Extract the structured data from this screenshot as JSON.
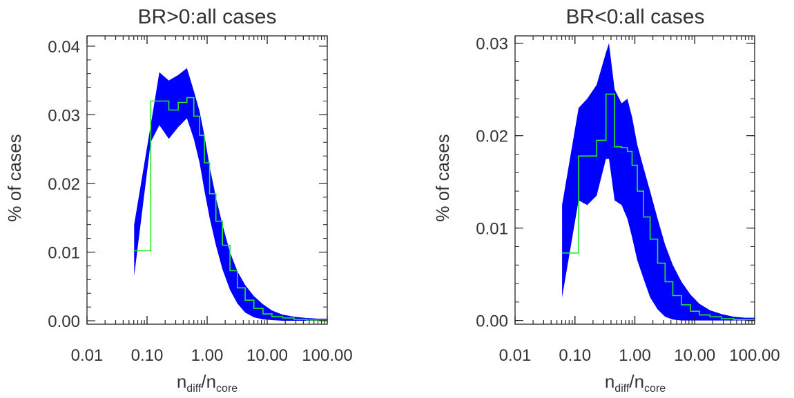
{
  "chart_data": [
    {
      "type": "area",
      "title": "BR>0:all cases",
      "xlabel_main": "n",
      "xlabel_sub1": "diff",
      "xlabel_sep": "/n",
      "xlabel_sub2": "core",
      "ylabel": "% of cases",
      "xscale": "log",
      "xlim": [
        0.01,
        100
      ],
      "ylim": [
        -0.0005,
        0.0415
      ],
      "xticks": [
        0.01,
        0.1,
        1,
        10,
        100
      ],
      "xtick_labels": [
        "0.01",
        "0.10",
        "1.00",
        "10.00",
        "100.00"
      ],
      "yticks": [
        0.0,
        0.01,
        0.02,
        0.03,
        0.04
      ],
      "ytick_labels": [
        "0.00",
        "0.01",
        "0.02",
        "0.03",
        "0.04"
      ],
      "grid": false,
      "colors": {
        "band": "#0000ff",
        "histogram": "#22ee22"
      },
      "series": [
        {
          "x": [
            0.061,
            0.115,
            0.16,
            0.23,
            0.33,
            0.46,
            0.6,
            0.75,
            0.9,
            1.1,
            1.4,
            1.8,
            2.4,
            3.2,
            4.3,
            6,
            8.5,
            12,
            18,
            28,
            45,
            70,
            100
          ],
          "upper": [
            0.014,
            0.0285,
            0.0362,
            0.035,
            0.0358,
            0.0368,
            0.0335,
            0.0305,
            0.027,
            0.0225,
            0.018,
            0.014,
            0.01,
            0.0072,
            0.0052,
            0.0036,
            0.0024,
            0.0015,
            0.0009,
            0.0006,
            0.0004,
            0.0003,
            0.0003
          ],
          "lower": [
            0.0065,
            0.026,
            0.0285,
            0.0265,
            0.0282,
            0.0295,
            0.0265,
            0.023,
            0.019,
            0.015,
            0.011,
            0.0075,
            0.0045,
            0.0025,
            0.0012,
            0.0005,
            0.0002,
            0.0001,
            0.0,
            0.0,
            0.0,
            0.0,
            0.0
          ]
        },
        {
          "edges": [
            0.061,
            0.115,
            0.16,
            0.23,
            0.33,
            0.46,
            0.6,
            0.75,
            0.9,
            1.1,
            1.4,
            1.8,
            2.4,
            3.2,
            4.3,
            6,
            8.5,
            12,
            18,
            28,
            45,
            70,
            100
          ],
          "values": [
            0.0102,
            0.032,
            0.032,
            0.0307,
            0.0318,
            0.0325,
            0.0298,
            0.027,
            0.023,
            0.0185,
            0.0145,
            0.011,
            0.0073,
            0.0048,
            0.003,
            0.0018,
            0.001,
            0.0006,
            0.0004,
            0.0002,
            0.0001,
            0.0001
          ]
        }
      ]
    },
    {
      "type": "area",
      "title": "BR<0:all cases",
      "xlabel_main": "n",
      "xlabel_sub1": "diff",
      "xlabel_sep": "/n",
      "xlabel_sub2": "core",
      "ylabel": "% of cases",
      "xscale": "log",
      "xlim": [
        0.01,
        100
      ],
      "ylim": [
        -0.0004,
        0.0308
      ],
      "xticks": [
        0.01,
        0.1,
        1,
        10,
        100
      ],
      "xtick_labels": [
        "0.01",
        "0.10",
        "1.00",
        "10.00",
        "100.00"
      ],
      "yticks": [
        0.0,
        0.01,
        0.02,
        0.03
      ],
      "ytick_labels": [
        "0.00",
        "0.01",
        "0.02",
        "0.03"
      ],
      "grid": false,
      "colors": {
        "band": "#0000ff",
        "histogram": "#22ee22"
      },
      "series": [
        {
          "x": [
            0.061,
            0.115,
            0.16,
            0.23,
            0.33,
            0.37,
            0.46,
            0.6,
            0.75,
            0.9,
            1.1,
            1.4,
            1.8,
            2.4,
            3.2,
            4.3,
            6,
            8.5,
            12,
            18,
            28,
            45,
            70,
            100
          ],
          "upper": [
            0.0125,
            0.023,
            0.024,
            0.0255,
            0.029,
            0.03,
            0.025,
            0.0235,
            0.024,
            0.022,
            0.019,
            0.0165,
            0.014,
            0.011,
            0.0082,
            0.006,
            0.0042,
            0.0028,
            0.0018,
            0.0011,
            0.0007,
            0.0004,
            0.0003,
            0.0003
          ],
          "lower": [
            0.0025,
            0.013,
            0.0125,
            0.0135,
            0.0175,
            0.0175,
            0.013,
            0.0125,
            0.011,
            0.009,
            0.0065,
            0.0045,
            0.0025,
            0.0012,
            0.0004,
            0.0001,
            0.0,
            0.0,
            0.0,
            0.0,
            0.0,
            0.0,
            0.0,
            0.0
          ]
        },
        {
          "edges": [
            0.061,
            0.115,
            0.16,
            0.23,
            0.33,
            0.46,
            0.6,
            0.75,
            0.9,
            1.1,
            1.4,
            1.8,
            2.4,
            3.2,
            4.3,
            6,
            8.5,
            12,
            18,
            28,
            45,
            70,
            100
          ],
          "values": [
            0.0073,
            0.0178,
            0.0178,
            0.0195,
            0.0245,
            0.0188,
            0.0187,
            0.0183,
            0.0168,
            0.014,
            0.0112,
            0.0088,
            0.0062,
            0.0042,
            0.0027,
            0.0017,
            0.001,
            0.0006,
            0.0004,
            0.0002,
            0.0001,
            0.0001
          ]
        }
      ]
    }
  ]
}
